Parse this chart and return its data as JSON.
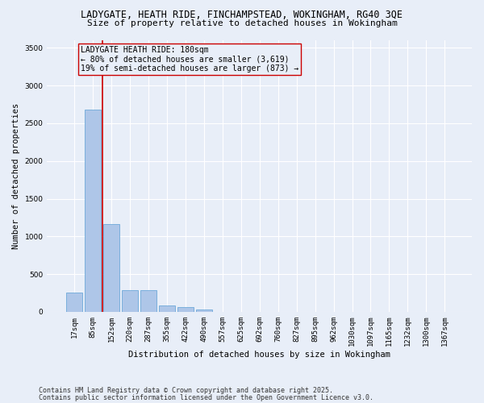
{
  "title_line1": "LADYGATE, HEATH RIDE, FINCHAMPSTEAD, WOKINGHAM, RG40 3QE",
  "title_line2": "Size of property relative to detached houses in Wokingham",
  "xlabel": "Distribution of detached houses by size in Wokingham",
  "ylabel": "Number of detached properties",
  "categories": [
    "17sqm",
    "85sqm",
    "152sqm",
    "220sqm",
    "287sqm",
    "355sqm",
    "422sqm",
    "490sqm",
    "557sqm",
    "625sqm",
    "692sqm",
    "760sqm",
    "827sqm",
    "895sqm",
    "962sqm",
    "1030sqm",
    "1097sqm",
    "1165sqm",
    "1232sqm",
    "1300sqm",
    "1367sqm"
  ],
  "values": [
    255,
    2680,
    1165,
    290,
    285,
    85,
    65,
    35,
    0,
    0,
    0,
    0,
    0,
    0,
    0,
    0,
    0,
    0,
    0,
    0,
    0
  ],
  "bar_color": "#aec6e8",
  "bar_edge_color": "#5a9fd4",
  "bar_linewidth": 0.5,
  "vline_color": "#cc0000",
  "vline_x_pos": 1.5,
  "annotation_box_text": "LADYGATE HEATH RIDE: 180sqm\n← 80% of detached houses are smaller (3,619)\n19% of semi-detached houses are larger (873) →",
  "box_edge_color": "#cc0000",
  "ylim": [
    0,
    3600
  ],
  "yticks": [
    0,
    500,
    1000,
    1500,
    2000,
    2500,
    3000,
    3500
  ],
  "bg_color": "#e8eef8",
  "grid_color": "#ffffff",
  "footnote_line1": "Contains HM Land Registry data © Crown copyright and database right 2025.",
  "footnote_line2": "Contains public sector information licensed under the Open Government Licence v3.0.",
  "title_fontsize": 8.5,
  "subtitle_fontsize": 8,
  "axis_label_fontsize": 7.5,
  "tick_fontsize": 6.5,
  "annotation_fontsize": 7,
  "footnote_fontsize": 6
}
